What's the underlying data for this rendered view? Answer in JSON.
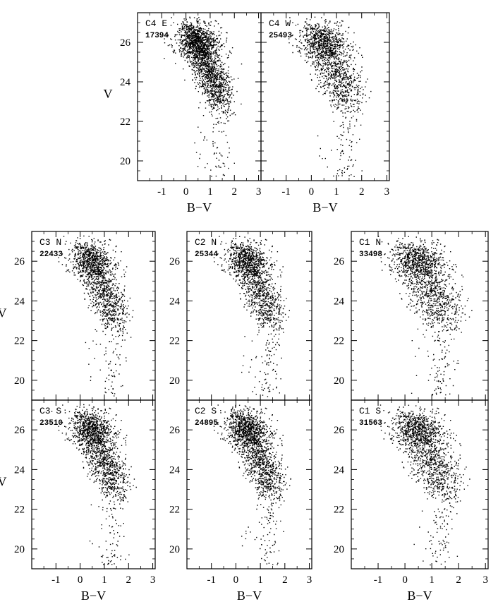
{
  "figure": {
    "foreground_color": "#000000",
    "background_color": "#ffffff"
  },
  "chart_data": [
    {
      "type": "scatter",
      "field": "C4 E",
      "count": "17394",
      "xlabel": "B−V",
      "ylabel": "V",
      "xlim": [
        -2,
        3.1
      ],
      "ylim": [
        27.5,
        19.0
      ],
      "xticks": [
        "-1",
        "0",
        "1",
        "2",
        "3"
      ],
      "yticks": [
        "20",
        "22",
        "24",
        "26"
      ],
      "xtick_values": [
        -1,
        0,
        1,
        2,
        3
      ],
      "ytick_values": [
        20,
        22,
        24,
        26
      ]
    },
    {
      "type": "scatter",
      "field": "C4 W",
      "count": "25493",
      "xlabel": "B−V",
      "ylabel": "",
      "xlim": [
        -2,
        3.1
      ],
      "ylim": [
        27.5,
        19.0
      ],
      "xticks": [
        "-1",
        "0",
        "1",
        "2",
        "3"
      ],
      "yticks": [],
      "xtick_values": [
        -1,
        0,
        1,
        2,
        3
      ],
      "ytick_values": [
        20,
        22,
        24,
        26
      ]
    },
    {
      "type": "scatter",
      "field": "C3 N",
      "count": "22433",
      "xlabel": "",
      "ylabel": "V",
      "xlim": [
        -2,
        3.1
      ],
      "ylim": [
        27.5,
        19.0
      ],
      "xticks": [],
      "yticks": [
        "20",
        "22",
        "24",
        "26"
      ],
      "xtick_values": [
        -1,
        0,
        1,
        2,
        3
      ],
      "ytick_values": [
        20,
        22,
        24,
        26
      ]
    },
    {
      "type": "scatter",
      "field": "C2 N",
      "count": "25344",
      "xlabel": "",
      "ylabel": "",
      "xlim": [
        -2,
        3.1
      ],
      "ylim": [
        27.5,
        19.0
      ],
      "xticks": [],
      "yticks": [
        "20",
        "22",
        "24",
        "26"
      ],
      "xtick_values": [
        -1,
        0,
        1,
        2,
        3
      ],
      "ytick_values": [
        20,
        22,
        24,
        26
      ]
    },
    {
      "type": "scatter",
      "field": "C1 N",
      "count": "33498",
      "xlabel": "",
      "ylabel": "",
      "xlim": [
        -2,
        3.1
      ],
      "ylim": [
        27.5,
        19.0
      ],
      "xticks": [],
      "yticks": [
        "20",
        "22",
        "24",
        "26"
      ],
      "xtick_values": [
        -1,
        0,
        1,
        2,
        3
      ],
      "ytick_values": [
        20,
        22,
        24,
        26
      ]
    },
    {
      "type": "scatter",
      "field": "C3 S",
      "count": "23510",
      "xlabel": "B−V",
      "ylabel": "V",
      "xlim": [
        -2,
        3.1
      ],
      "ylim": [
        27.5,
        19.0
      ],
      "xticks": [
        "-1",
        "0",
        "1",
        "2",
        "3"
      ],
      "yticks": [
        "20",
        "22",
        "24",
        "26"
      ],
      "xtick_values": [
        -1,
        0,
        1,
        2,
        3
      ],
      "ytick_values": [
        20,
        22,
        24,
        26
      ]
    },
    {
      "type": "scatter",
      "field": "C2 S",
      "count": "24895",
      "xlabel": "B−V",
      "ylabel": "",
      "xlim": [
        -2,
        3.1
      ],
      "ylim": [
        27.5,
        19.0
      ],
      "xticks": [
        "-1",
        "0",
        "1",
        "2",
        "3"
      ],
      "yticks": [
        "20",
        "22",
        "24",
        "26"
      ],
      "xtick_values": [
        -1,
        0,
        1,
        2,
        3
      ],
      "ytick_values": [
        20,
        22,
        24,
        26
      ]
    },
    {
      "type": "scatter",
      "field": "C1 S",
      "count": "31563",
      "xlabel": "B−V",
      "ylabel": "",
      "xlim": [
        -2,
        3.1
      ],
      "ylim": [
        27.5,
        19.0
      ],
      "xticks": [
        "-1",
        "0",
        "1",
        "2",
        "3"
      ],
      "yticks": [
        "20",
        "22",
        "24",
        "26"
      ],
      "xtick_values": [
        -1,
        0,
        1,
        2,
        3
      ],
      "ytick_values": [
        20,
        22,
        24,
        26
      ]
    }
  ]
}
